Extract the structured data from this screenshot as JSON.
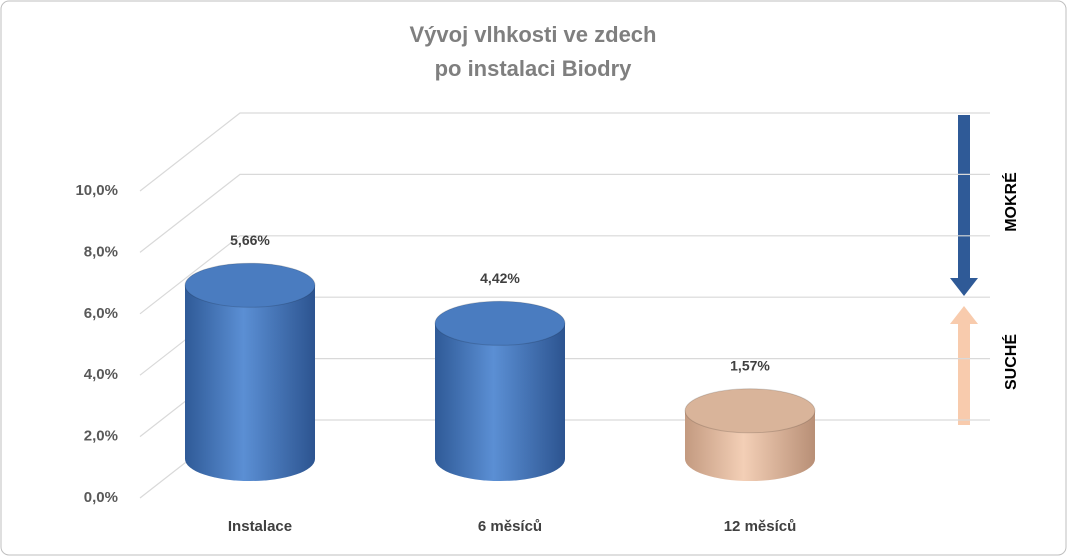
{
  "chart_data": {
    "type": "bar",
    "title": [
      "Vývoj vlhkosti ve zdech",
      "po instalaci Biodry"
    ],
    "categories": [
      "Instalace",
      "6 měsíců",
      "12 měsíců"
    ],
    "values": [
      5.66,
      4.42,
      1.57
    ],
    "value_labels": [
      "5,66%",
      "4,42%",
      "1,57%"
    ],
    "colors": [
      "#4a7cc0",
      "#4a7cc0",
      "#d9b49a"
    ],
    "ylim": [
      0,
      10
    ],
    "yticks": [
      {
        "value": 0,
        "label": "0,0%"
      },
      {
        "value": 2,
        "label": "2,0%"
      },
      {
        "value": 4,
        "label": "4,0%"
      },
      {
        "value": 6,
        "label": "6,0%"
      },
      {
        "value": 8,
        "label": "8,0%"
      },
      {
        "value": 10,
        "label": "10,0%"
      }
    ],
    "grid": true,
    "annotations": [
      "MOKRÉ",
      "SUCHÉ"
    ]
  }
}
